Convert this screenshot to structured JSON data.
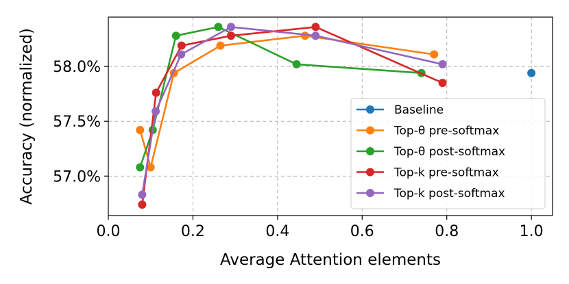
{
  "chart_data": {
    "type": "line",
    "title": "",
    "xlabel": "Average Attention elements",
    "ylabel": "Accuracy (normalized)",
    "xlim": [
      0.0,
      1.05
    ],
    "ylim": [
      56.64,
      58.45
    ],
    "xticks": [
      0.0,
      0.2,
      0.4,
      0.6,
      0.8,
      1.0
    ],
    "xtick_labels": [
      "0.0",
      "0.2",
      "0.4",
      "0.6",
      "0.8",
      "1.0"
    ],
    "yticks": [
      57.0,
      57.5,
      58.0
    ],
    "ytick_labels": [
      "57.0%",
      "57.5%",
      "58.0%"
    ],
    "grid": true,
    "legend_position": "lower-right",
    "series": [
      {
        "name": "Baseline",
        "color": "#1f77b4",
        "x": [
          1.0
        ],
        "y": [
          57.94
        ]
      },
      {
        "name": "Top-θ pre-softmax",
        "color": "#ff7f0e",
        "x": [
          0.075,
          0.1,
          0.155,
          0.265,
          0.465,
          0.77
        ],
        "y": [
          57.42,
          57.08,
          57.94,
          58.19,
          58.28,
          58.11
        ]
      },
      {
        "name": "Top-θ post-softmax",
        "color": "#2ca02c",
        "x": [
          0.075,
          0.105,
          0.16,
          0.26,
          0.445,
          0.74
        ],
        "y": [
          57.08,
          57.42,
          58.28,
          58.36,
          58.02,
          57.94
        ]
      },
      {
        "name": "Top-k pre-softmax",
        "color": "#d62728",
        "x": [
          0.08,
          0.113,
          0.173,
          0.29,
          0.49,
          0.79
        ],
        "y": [
          56.74,
          57.76,
          58.19,
          58.28,
          58.36,
          57.85
        ]
      },
      {
        "name": "Top-k post-softmax",
        "color": "#9467bd",
        "x": [
          0.08,
          0.112,
          0.172,
          0.29,
          0.49,
          0.79
        ],
        "y": [
          56.83,
          57.59,
          58.11,
          58.36,
          58.28,
          58.02
        ]
      }
    ]
  }
}
